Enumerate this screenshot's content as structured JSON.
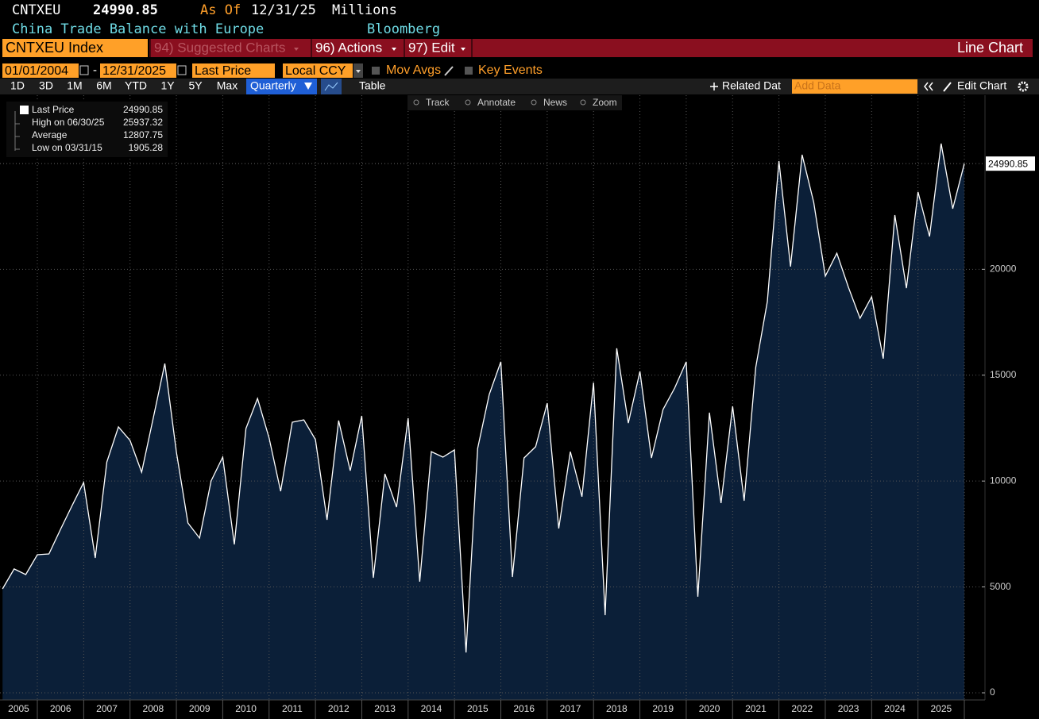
{
  "header": {
    "ticker": "CNTXEU",
    "last": "24990.85",
    "as_of_label": "As Of",
    "as_of": "12/31/25",
    "units": "Millions",
    "description": "China Trade Balance with Europe",
    "source": "Bloomberg"
  },
  "menu": {
    "security": "CNTXEU Index",
    "items": [
      "94) Suggested Charts",
      "96) Actions",
      "97) Edit"
    ],
    "view": "Line Chart"
  },
  "controls": {
    "start": "01/01/2004",
    "separator": "-",
    "end": "12/31/2025",
    "field": "Last Price",
    "currency": "Local CCY",
    "options": [
      "Mov Avgs",
      "Key Events"
    ]
  },
  "ranges": [
    "1D",
    "3D",
    "1M",
    "6M",
    "YTD",
    "1Y",
    "5Y",
    "Max"
  ],
  "frequency": "Quarterly",
  "table": "Table",
  "related": "Related Dat",
  "add_data": "Add Data",
  "edit_chart": "Edit Chart",
  "tools": [
    "Track",
    "Annotate",
    "News",
    "Zoom"
  ],
  "legend": [
    {
      "label": "Last Price",
      "value": 24990.85
    },
    {
      "label": "High on 06/30/25",
      "value": 25937.32
    },
    {
      "label": "Average",
      "value": 12807.75
    },
    {
      "label": "Low on 03/31/15",
      "value": 1905.28
    }
  ],
  "chart_data": {
    "type": "line",
    "x": [
      "03/31/05",
      "06/30/05",
      "09/30/05",
      "12/31/05",
      "03/31/06",
      "06/30/06",
      "09/30/06",
      "12/31/06",
      "03/31/07",
      "06/30/07",
      "09/30/07",
      "12/31/07",
      "03/31/08",
      "06/30/08",
      "09/30/08",
      "12/31/08",
      "03/31/09",
      "06/30/09",
      "09/30/09",
      "12/31/09",
      "03/31/10",
      "06/30/10",
      "09/30/10",
      "12/31/10",
      "03/31/11",
      "06/30/11",
      "09/30/11",
      "12/31/11",
      "03/31/12",
      "06/30/12",
      "09/30/12",
      "12/31/12",
      "03/31/13",
      "06/30/13",
      "09/30/13",
      "12/31/13",
      "03/31/14",
      "06/30/14",
      "09/30/14",
      "12/31/14",
      "03/31/15",
      "06/30/15",
      "09/30/15",
      "12/31/15",
      "03/31/16",
      "06/30/16",
      "09/30/16",
      "12/31/16",
      "03/31/17",
      "06/30/17",
      "09/30/17",
      "12/31/17",
      "03/31/18",
      "06/30/18",
      "09/30/18",
      "12/31/18",
      "03/31/19",
      "06/30/19",
      "09/30/19",
      "12/31/19",
      "03/31/20",
      "06/30/20",
      "09/30/20",
      "12/31/20",
      "03/31/21",
      "06/30/21",
      "09/30/21",
      "12/31/21",
      "03/31/22",
      "06/30/22",
      "09/30/22",
      "12/31/22",
      "03/31/23",
      "06/30/23",
      "09/30/23",
      "12/31/23",
      "03/31/24",
      "06/30/24",
      "09/30/24",
      "12/31/24",
      "03/31/25",
      "06/30/25",
      "09/30/25",
      "12/31/25"
    ],
    "series": [
      {
        "name": "Last Price",
        "color": "#ffffff",
        "fill": "#0b1f38",
        "values": [
          4910,
          5850,
          5585,
          6520,
          6560,
          7720,
          8845,
          9930,
          6370,
          10900,
          12560,
          11920,
          10420,
          12970,
          15550,
          11360,
          8020,
          7310,
          10010,
          11130,
          7010,
          12480,
          13900,
          12030,
          9520,
          12780,
          12890,
          11960,
          8170,
          12860,
          10490,
          13080,
          5430,
          10340,
          8770,
          12970,
          5250,
          11390,
          11130,
          11470,
          1905.28,
          11540,
          14090,
          15630,
          5470,
          11090,
          11620,
          13680,
          7760,
          11390,
          9260,
          14650,
          3670,
          16270,
          12740,
          15180,
          11090,
          13380,
          14390,
          15630,
          4540,
          13230,
          8960,
          13530,
          9070,
          15370,
          18480,
          25110,
          20130,
          25410,
          23160,
          19680,
          20760,
          19150,
          17690,
          18700,
          15780,
          22560,
          19110,
          23650,
          21550,
          25937.32,
          22860,
          24990.85
        ]
      }
    ],
    "ylim": [
      -337,
      28220
    ],
    "yticks": [
      0,
      5000,
      10000,
      15000,
      20000
    ],
    "xticks": [
      2005,
      2006,
      2007,
      2008,
      2009,
      2010,
      2011,
      2012,
      2013,
      2014,
      2015,
      2016,
      2017,
      2018,
      2019,
      2020,
      2021,
      2022,
      2023,
      2024,
      2025
    ],
    "grid": true
  }
}
